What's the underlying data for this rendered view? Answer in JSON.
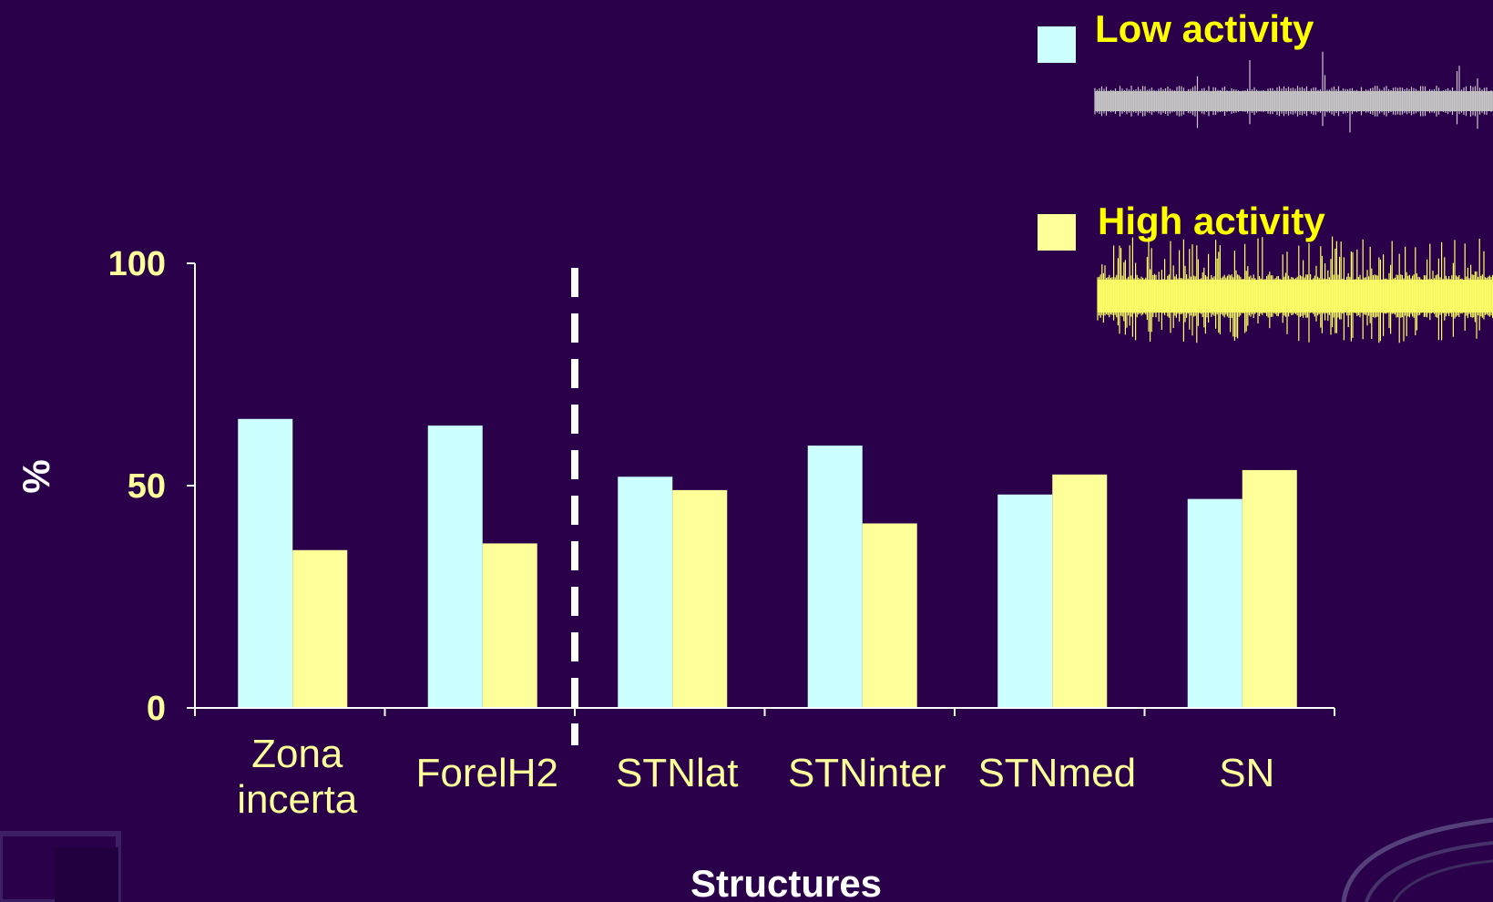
{
  "colors": {
    "background": "#2a004a",
    "low": "#ccffff",
    "high": "#ffff99",
    "axis": "#ffffff",
    "label": "#ffff99",
    "legend_text": "#ffff00",
    "trace_low": "#c8c8c8",
    "trace_high": "#ffff66"
  },
  "chart_data": {
    "type": "bar",
    "categories": [
      "Zona incerta",
      "ForelH2",
      "STNlat",
      "STNinter",
      "STNmed",
      "SN"
    ],
    "category_lines": [
      [
        "Zona",
        "incerta"
      ],
      [
        "ForelH2"
      ],
      [
        "STNlat"
      ],
      [
        "STNinter"
      ],
      [
        "STNmed"
      ],
      [
        "SN"
      ]
    ],
    "series": [
      {
        "name": "Low activity",
        "values": [
          65,
          63.5,
          52,
          59,
          48,
          47
        ]
      },
      {
        "name": "High activity",
        "values": [
          35.5,
          37,
          49,
          41.5,
          52.5,
          53.5
        ]
      }
    ],
    "ylim": [
      0,
      100
    ],
    "yticks": [
      "0",
      "50",
      "100"
    ],
    "xlabel": "Structures",
    "ylabel": "%",
    "legend_position": "top-right",
    "divider_between": [
      "ForelH2",
      "STNlat"
    ],
    "grid": false
  }
}
